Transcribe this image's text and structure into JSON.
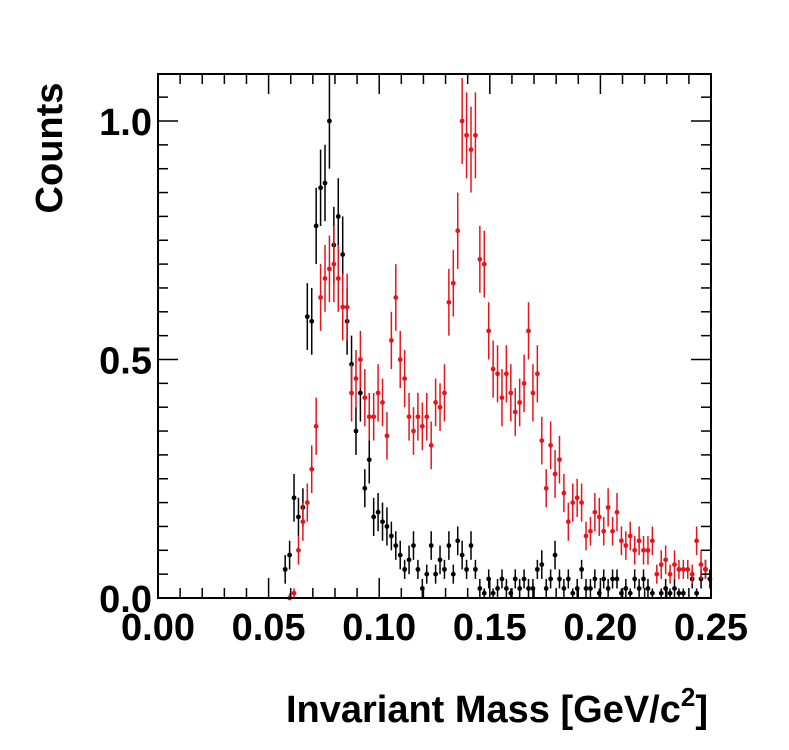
{
  "chart_data": {
    "type": "scatter",
    "title": "",
    "xlabel": "Invariant Mass [GeV/c",
    "xlabel_superscript": "2",
    "xlabel_suffix": "]",
    "ylabel": "Counts",
    "xlim": [
      0.0,
      0.25
    ],
    "ylim": [
      0.0,
      1.1
    ],
    "grid": false,
    "x_ticks": [
      0.0,
      0.05,
      0.1,
      0.15,
      0.2,
      0.25
    ],
    "x_tick_labels": [
      "0.00",
      "0.05",
      "0.10",
      "0.15",
      "0.20",
      "0.25"
    ],
    "y_ticks": [
      0.0,
      0.5,
      1.0
    ],
    "y_tick_labels": [
      "0.0",
      "0.5",
      "1.0"
    ],
    "series": [
      {
        "color": "#000000",
        "points": [
          [
            0.0575,
            0.06,
            0.03
          ],
          [
            0.0595,
            0.09,
            0.03
          ],
          [
            0.0615,
            0.21,
            0.05
          ],
          [
            0.0635,
            0.17,
            0.04
          ],
          [
            0.0655,
            0.19,
            0.04
          ],
          [
            0.0675,
            0.59,
            0.07
          ],
          [
            0.0695,
            0.58,
            0.07
          ],
          [
            0.0715,
            0.78,
            0.08
          ],
          [
            0.0735,
            0.86,
            0.08
          ],
          [
            0.0755,
            0.87,
            0.08
          ],
          [
            0.0775,
            1.0,
            0.1
          ],
          [
            0.0795,
            0.74,
            0.08
          ],
          [
            0.0815,
            0.8,
            0.08
          ],
          [
            0.0835,
            0.72,
            0.08
          ],
          [
            0.0855,
            0.58,
            0.07
          ],
          [
            0.0875,
            0.49,
            0.06
          ],
          [
            0.0895,
            0.35,
            0.05
          ],
          [
            0.0915,
            0.43,
            0.06
          ],
          [
            0.0935,
            0.23,
            0.04
          ],
          [
            0.0955,
            0.29,
            0.05
          ],
          [
            0.0975,
            0.17,
            0.04
          ],
          [
            0.0995,
            0.18,
            0.04
          ],
          [
            0.1015,
            0.16,
            0.04
          ],
          [
            0.1035,
            0.15,
            0.04
          ],
          [
            0.1055,
            0.13,
            0.03
          ],
          [
            0.1075,
            0.11,
            0.03
          ],
          [
            0.1095,
            0.09,
            0.03
          ],
          [
            0.1115,
            0.06,
            0.02
          ],
          [
            0.1135,
            0.08,
            0.03
          ],
          [
            0.1155,
            0.11,
            0.03
          ],
          [
            0.1175,
            0.06,
            0.02
          ],
          [
            0.1195,
            0.02,
            0.02
          ],
          [
            0.1215,
            0.05,
            0.02
          ],
          [
            0.1235,
            0.11,
            0.03
          ],
          [
            0.1255,
            0.05,
            0.02
          ],
          [
            0.1275,
            0.08,
            0.03
          ],
          [
            0.1295,
            0.06,
            0.02
          ],
          [
            0.1315,
            0.11,
            0.03
          ],
          [
            0.1335,
            0.05,
            0.02
          ],
          [
            0.1355,
            0.12,
            0.03
          ],
          [
            0.1375,
            0.09,
            0.03
          ],
          [
            0.1395,
            0.06,
            0.02
          ],
          [
            0.1415,
            0.11,
            0.03
          ],
          [
            0.1435,
            0.06,
            0.02
          ],
          [
            0.1455,
            0.02,
            0.02
          ],
          [
            0.1475,
            0.01,
            0.01
          ],
          [
            0.1495,
            0.04,
            0.02
          ],
          [
            0.1515,
            0.01,
            0.01
          ],
          [
            0.1535,
            0.02,
            0.02
          ],
          [
            0.1555,
            0.04,
            0.02
          ],
          [
            0.1575,
            0.02,
            0.02
          ],
          [
            0.1595,
            0.01,
            0.01
          ],
          [
            0.1615,
            0.04,
            0.02
          ],
          [
            0.1635,
            0.02,
            0.02
          ],
          [
            0.1655,
            0.04,
            0.02
          ],
          [
            0.1675,
            0.02,
            0.02
          ],
          [
            0.1695,
            0.02,
            0.02
          ],
          [
            0.1715,
            0.06,
            0.02
          ],
          [
            0.1735,
            0.07,
            0.03
          ],
          [
            0.1755,
            0.02,
            0.02
          ],
          [
            0.1775,
            0.04,
            0.02
          ],
          [
            0.1795,
            0.09,
            0.03
          ],
          [
            0.1815,
            0.04,
            0.02
          ],
          [
            0.1835,
            0.02,
            0.02
          ],
          [
            0.1855,
            0.04,
            0.02
          ],
          [
            0.1875,
            0.01,
            0.01
          ],
          [
            0.1895,
            0.02,
            0.02
          ],
          [
            0.1915,
            0.06,
            0.02
          ],
          [
            0.1935,
            0.02,
            0.02
          ],
          [
            0.1955,
            0.02,
            0.02
          ],
          [
            0.1975,
            0.04,
            0.02
          ],
          [
            0.1995,
            0.01,
            0.01
          ],
          [
            0.2015,
            0.04,
            0.02
          ],
          [
            0.2035,
            0.02,
            0.02
          ],
          [
            0.2055,
            0.04,
            0.02
          ],
          [
            0.2075,
            0.04,
            0.02
          ],
          [
            0.2095,
            0.01,
            0.01
          ],
          [
            0.2115,
            0.02,
            0.02
          ],
          [
            0.2135,
            0.01,
            0.01
          ],
          [
            0.2155,
            0.04,
            0.02
          ],
          [
            0.2175,
            0.02,
            0.02
          ],
          [
            0.2195,
            0.04,
            0.02
          ],
          [
            0.2215,
            0.02,
            0.02
          ],
          [
            0.2235,
            0.01,
            0.01
          ],
          [
            0.2275,
            0.01,
            0.01
          ],
          [
            0.2295,
            0.02,
            0.02
          ],
          [
            0.2315,
            0.01,
            0.01
          ],
          [
            0.2335,
            0.02,
            0.02
          ],
          [
            0.2355,
            0.01,
            0.01
          ],
          [
            0.2375,
            0.01,
            0.01
          ],
          [
            0.2415,
            0.04,
            0.02
          ],
          [
            0.2435,
            0.01,
            0.01
          ],
          [
            0.2455,
            0.04,
            0.02
          ],
          [
            0.2475,
            0.06,
            0.02
          ],
          [
            0.2495,
            0.04,
            0.02
          ]
        ]
      },
      {
        "color": "#e8141c",
        "points": [
          [
            0.0595,
            0.0,
            0.01
          ],
          [
            0.0615,
            0.01,
            0.01
          ],
          [
            0.0635,
            0.1,
            0.03
          ],
          [
            0.0655,
            0.16,
            0.04
          ],
          [
            0.0675,
            0.2,
            0.04
          ],
          [
            0.0695,
            0.27,
            0.05
          ],
          [
            0.0715,
            0.36,
            0.06
          ],
          [
            0.0735,
            0.63,
            0.07
          ],
          [
            0.0755,
            0.67,
            0.07
          ],
          [
            0.0775,
            0.69,
            0.07
          ],
          [
            0.0795,
            0.7,
            0.08
          ],
          [
            0.0815,
            0.67,
            0.07
          ],
          [
            0.0835,
            0.61,
            0.07
          ],
          [
            0.0855,
            0.61,
            0.07
          ],
          [
            0.0875,
            0.43,
            0.06
          ],
          [
            0.0895,
            0.46,
            0.06
          ],
          [
            0.0915,
            0.5,
            0.06
          ],
          [
            0.0935,
            0.42,
            0.06
          ],
          [
            0.0955,
            0.38,
            0.05
          ],
          [
            0.0975,
            0.38,
            0.05
          ],
          [
            0.0995,
            0.43,
            0.06
          ],
          [
            0.1015,
            0.41,
            0.05
          ],
          [
            0.1035,
            0.34,
            0.05
          ],
          [
            0.1055,
            0.54,
            0.06
          ],
          [
            0.1075,
            0.63,
            0.07
          ],
          [
            0.1095,
            0.5,
            0.06
          ],
          [
            0.1115,
            0.46,
            0.06
          ],
          [
            0.1135,
            0.38,
            0.05
          ],
          [
            0.1155,
            0.35,
            0.05
          ],
          [
            0.1175,
            0.38,
            0.05
          ],
          [
            0.1195,
            0.36,
            0.05
          ],
          [
            0.1215,
            0.38,
            0.05
          ],
          [
            0.1235,
            0.32,
            0.05
          ],
          [
            0.1255,
            0.41,
            0.05
          ],
          [
            0.1275,
            0.4,
            0.05
          ],
          [
            0.1295,
            0.43,
            0.06
          ],
          [
            0.1315,
            0.62,
            0.07
          ],
          [
            0.1335,
            0.66,
            0.07
          ],
          [
            0.1355,
            0.77,
            0.08
          ],
          [
            0.1375,
            1.0,
            0.09
          ],
          [
            0.1395,
            0.97,
            0.09
          ],
          [
            0.1415,
            0.94,
            0.09
          ],
          [
            0.1435,
            0.97,
            0.09
          ],
          [
            0.1455,
            0.71,
            0.07
          ],
          [
            0.1475,
            0.7,
            0.07
          ],
          [
            0.1495,
            0.56,
            0.06
          ],
          [
            0.1515,
            0.48,
            0.06
          ],
          [
            0.1535,
            0.47,
            0.06
          ],
          [
            0.1555,
            0.42,
            0.06
          ],
          [
            0.1575,
            0.47,
            0.06
          ],
          [
            0.1595,
            0.43,
            0.06
          ],
          [
            0.1615,
            0.39,
            0.05
          ],
          [
            0.1635,
            0.41,
            0.05
          ],
          [
            0.1655,
            0.45,
            0.06
          ],
          [
            0.1675,
            0.56,
            0.06
          ],
          [
            0.1695,
            0.43,
            0.06
          ],
          [
            0.1715,
            0.47,
            0.06
          ],
          [
            0.1735,
            0.33,
            0.05
          ],
          [
            0.1755,
            0.23,
            0.04
          ],
          [
            0.1775,
            0.32,
            0.05
          ],
          [
            0.1795,
            0.26,
            0.05
          ],
          [
            0.1815,
            0.29,
            0.05
          ],
          [
            0.1835,
            0.22,
            0.04
          ],
          [
            0.1855,
            0.16,
            0.04
          ],
          [
            0.1875,
            0.2,
            0.04
          ],
          [
            0.1895,
            0.21,
            0.04
          ],
          [
            0.1915,
            0.2,
            0.04
          ],
          [
            0.1935,
            0.13,
            0.03
          ],
          [
            0.1955,
            0.14,
            0.03
          ],
          [
            0.1975,
            0.18,
            0.04
          ],
          [
            0.1995,
            0.17,
            0.04
          ],
          [
            0.2015,
            0.14,
            0.03
          ],
          [
            0.2035,
            0.19,
            0.04
          ],
          [
            0.2055,
            0.14,
            0.03
          ],
          [
            0.2075,
            0.18,
            0.04
          ],
          [
            0.2095,
            0.12,
            0.03
          ],
          [
            0.2115,
            0.11,
            0.03
          ],
          [
            0.2135,
            0.13,
            0.03
          ],
          [
            0.2155,
            0.1,
            0.03
          ],
          [
            0.2175,
            0.12,
            0.03
          ],
          [
            0.2195,
            0.1,
            0.03
          ],
          [
            0.2215,
            0.1,
            0.03
          ],
          [
            0.2235,
            0.12,
            0.03
          ],
          [
            0.2255,
            0.05,
            0.02
          ],
          [
            0.2275,
            0.07,
            0.03
          ],
          [
            0.2295,
            0.08,
            0.03
          ],
          [
            0.2315,
            0.05,
            0.02
          ],
          [
            0.2335,
            0.07,
            0.03
          ],
          [
            0.2355,
            0.06,
            0.02
          ],
          [
            0.2375,
            0.06,
            0.02
          ],
          [
            0.2395,
            0.06,
            0.02
          ],
          [
            0.2415,
            0.05,
            0.02
          ],
          [
            0.2435,
            0.12,
            0.03
          ],
          [
            0.2455,
            0.07,
            0.03
          ],
          [
            0.2475,
            0.06,
            0.02
          ]
        ]
      }
    ]
  }
}
